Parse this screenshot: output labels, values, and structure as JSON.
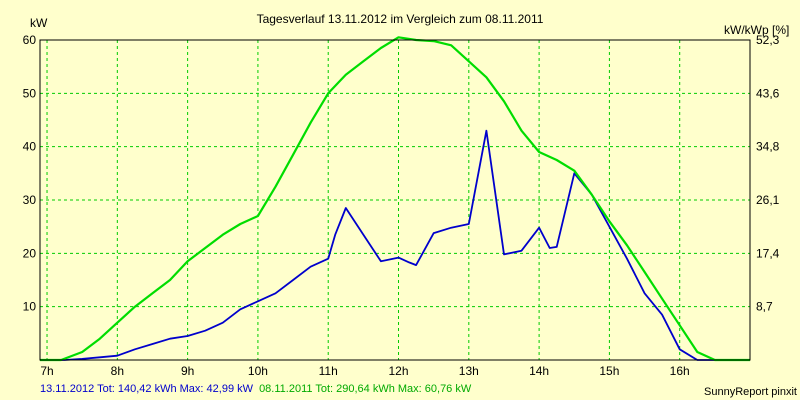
{
  "chart_data": {
    "type": "line",
    "title": "Tagesverlauf 13.11.2012 im Vergleich zum 08.11.2011",
    "ylabel_left": "kW",
    "ylabel_right": "kW/kWp [%]",
    "categories": [
      "7h",
      "8h",
      "9h",
      "10h",
      "11h",
      "12h",
      "13h",
      "14h",
      "15h",
      "16h"
    ],
    "x_hours": [
      7,
      8,
      9,
      10,
      11,
      12,
      13,
      14,
      15,
      16
    ],
    "xlim": [
      6.9,
      17.0
    ],
    "ylim": [
      0,
      60
    ],
    "yticks_left": [
      10,
      20,
      30,
      40,
      50,
      60
    ],
    "yticks_right": [
      "8,7",
      "17,4",
      "26,1",
      "34,8",
      "43,6",
      "52,3"
    ],
    "grid": true,
    "series": [
      {
        "name": "13.11.2012",
        "color": "#0000cc",
        "points": [
          [
            6.9,
            0
          ],
          [
            7.25,
            0
          ],
          [
            7.5,
            0.2
          ],
          [
            7.75,
            0.5
          ],
          [
            8.0,
            0.8
          ],
          [
            8.25,
            2
          ],
          [
            8.5,
            3
          ],
          [
            8.75,
            4
          ],
          [
            9.0,
            4.5
          ],
          [
            9.25,
            5.5
          ],
          [
            9.5,
            7
          ],
          [
            9.75,
            9.5
          ],
          [
            10.0,
            11
          ],
          [
            10.25,
            12.5
          ],
          [
            10.5,
            15
          ],
          [
            10.75,
            17.5
          ],
          [
            11.0,
            19
          ],
          [
            11.1,
            23.5
          ],
          [
            11.25,
            28.5
          ],
          [
            11.5,
            23.5
          ],
          [
            11.75,
            18.5
          ],
          [
            12.0,
            19.2
          ],
          [
            12.15,
            18.3
          ],
          [
            12.25,
            17.8
          ],
          [
            12.5,
            23.8
          ],
          [
            12.75,
            24.8
          ],
          [
            13.0,
            25.5
          ],
          [
            13.25,
            43
          ],
          [
            13.5,
            19.8
          ],
          [
            13.75,
            20.5
          ],
          [
            14.0,
            24.8
          ],
          [
            14.15,
            21
          ],
          [
            14.25,
            21.2
          ],
          [
            14.5,
            35
          ],
          [
            14.75,
            31
          ],
          [
            15.0,
            25
          ],
          [
            15.25,
            19
          ],
          [
            15.5,
            12.5
          ],
          [
            15.75,
            8.5
          ],
          [
            16.0,
            2
          ],
          [
            16.25,
            0
          ],
          [
            17.0,
            0
          ]
        ]
      },
      {
        "name": "08.11.2011",
        "color": "#00dd00",
        "points": [
          [
            6.9,
            0
          ],
          [
            7.2,
            0
          ],
          [
            7.5,
            1.5
          ],
          [
            7.75,
            4
          ],
          [
            8.0,
            7
          ],
          [
            8.25,
            10
          ],
          [
            8.5,
            12.5
          ],
          [
            8.75,
            15
          ],
          [
            9.0,
            18.5
          ],
          [
            9.25,
            21
          ],
          [
            9.5,
            23.5
          ],
          [
            9.75,
            25.5
          ],
          [
            10.0,
            27
          ],
          [
            10.25,
            32.5
          ],
          [
            10.5,
            38.5
          ],
          [
            10.75,
            44.5
          ],
          [
            11.0,
            50
          ],
          [
            11.25,
            53.5
          ],
          [
            11.5,
            56
          ],
          [
            11.75,
            58.5
          ],
          [
            12.0,
            60.5
          ],
          [
            12.25,
            60
          ],
          [
            12.5,
            59.8
          ],
          [
            12.75,
            59
          ],
          [
            13.0,
            56
          ],
          [
            13.25,
            53
          ],
          [
            13.5,
            48.5
          ],
          [
            13.75,
            43
          ],
          [
            14.0,
            39
          ],
          [
            14.25,
            37.5
          ],
          [
            14.5,
            35.5
          ],
          [
            14.75,
            31
          ],
          [
            15.0,
            26
          ],
          [
            15.25,
            21.5
          ],
          [
            15.5,
            16.5
          ],
          [
            15.75,
            11.5
          ],
          [
            16.0,
            6.5
          ],
          [
            16.25,
            1.5
          ],
          [
            16.5,
            0
          ],
          [
            17.0,
            0
          ]
        ]
      }
    ]
  },
  "footer": {
    "blue_text": "13.11.2012 Tot: 140,42 kWh Max: 42,99 kW",
    "green_text": "08.11.2011 Tot: 290,64 kWh Max: 60,76 kW",
    "credit": "SunnyReport pinxit"
  },
  "colors": {
    "background": "#ffffcc",
    "plot_background": "#ffffcc",
    "grid": "#00cc00",
    "blue": "#0000cc",
    "green": "#00dd00"
  }
}
